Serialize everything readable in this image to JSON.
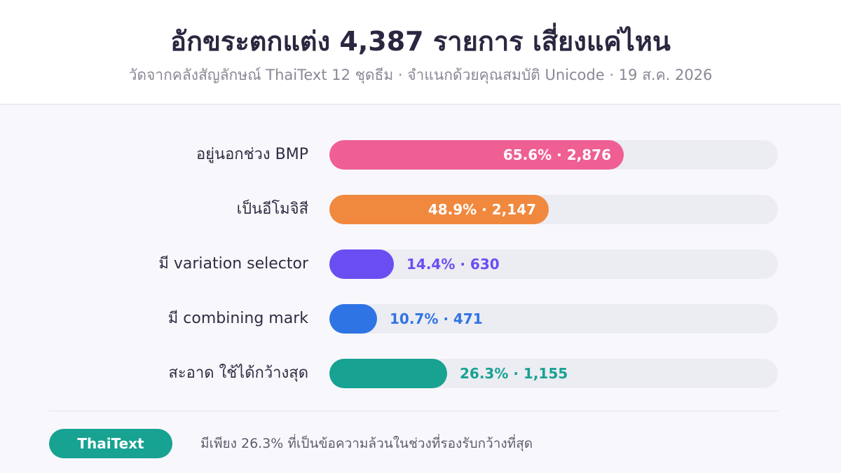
{
  "header": {
    "title": "อักขระตกแต่ง 4,387 รายการ เสี่ยงแค่ไหน",
    "subtitle": "วัดจากคลังสัญลักษณ์ ThaiText 12 ชุดธีม · จำแนกด้วยคุณสมบัติ Unicode · 19 ส.ค. 2026"
  },
  "chart_data": {
    "type": "bar",
    "orientation": "horizontal",
    "title": "อักขระตกแต่ง 4,387 รายการ เสี่ยงแค่ไหน",
    "subtitle": "วัดจากคลังสัญลักษณ์ ThaiText 12 ชุดธีม · จำแนกด้วยคุณสมบัติ Unicode · 19 ส.ค. 2026",
    "total": 4387,
    "xlim": [
      0,
      100
    ],
    "grid": false,
    "categories": [
      "อยู่นอกช่วง BMP",
      "เป็นอีโมจิสี",
      "มี variation selector",
      "มี combining mark",
      "สะอาด ใช้ได้กว้างสุด"
    ],
    "values": [
      65.6,
      48.9,
      14.4,
      10.7,
      26.3
    ],
    "counts": [
      2876,
      2147,
      630,
      471,
      1155
    ],
    "value_labels": [
      "65.6% · 2,876",
      "48.9% · 2,147",
      "14.4% · 630",
      "10.7% · 471",
      "26.3% · 1,155"
    ],
    "colors": [
      "#ef5f93",
      "#f0893e",
      "#6b4ef2",
      "#2f74e4",
      "#17a292"
    ]
  },
  "footer": {
    "badge": "ThaiText",
    "badge_color": "#17a292",
    "note": "มีเพียง 26.3% ที่เป็นข้อความล้วนในช่วงที่รองรับกว้างที่สุด"
  }
}
